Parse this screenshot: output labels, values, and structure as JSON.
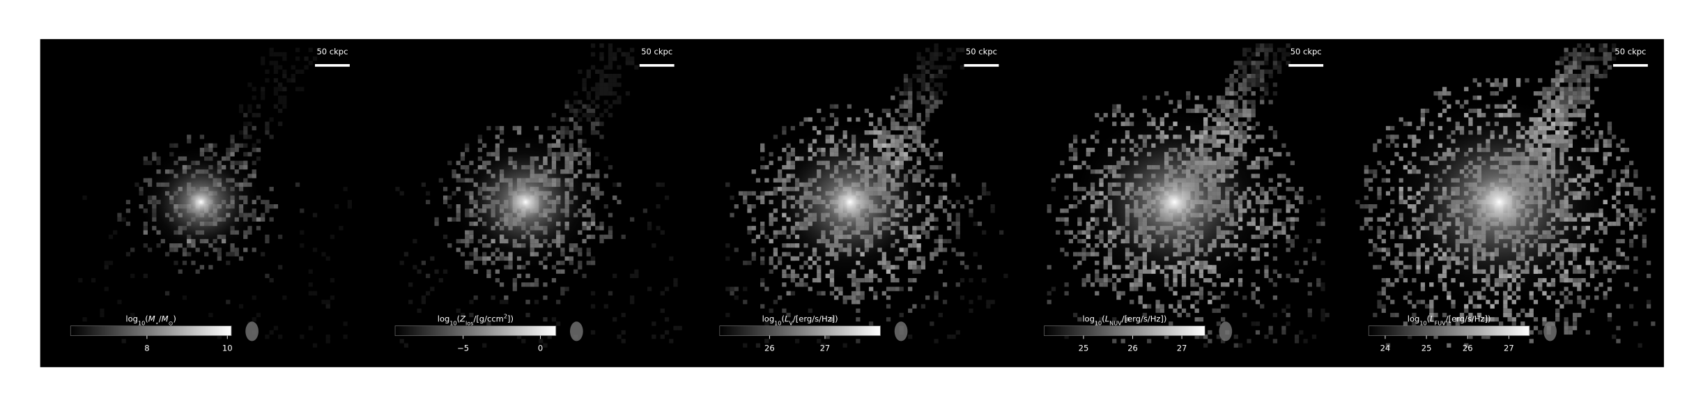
{
  "panels": [
    {
      "scale_bar": "50 ckpc",
      "colorbar": {
        "label": [
          {
            "text": "log"
          },
          {
            "text": "10",
            "sub": true
          },
          {
            "text": "("
          },
          {
            "text": "M",
            "italic": true
          },
          {
            "text": "⋆",
            "sub": true
          },
          {
            "text": "/"
          },
          {
            "text": "M",
            "italic": true
          },
          {
            "text": "⊙",
            "sub": true
          },
          {
            "text": ")"
          }
        ],
        "lim": [
          6.1,
          10.1
        ],
        "ticks": [
          8,
          10
        ]
      }
    },
    {
      "scale_bar": "50 ckpc",
      "colorbar": {
        "label": [
          {
            "text": "log"
          },
          {
            "text": "10",
            "sub": true
          },
          {
            "text": "("
          },
          {
            "text": "Z",
            "italic": true
          },
          {
            "text": "los",
            "sub": true
          },
          {
            "text": "/[g/ccm"
          },
          {
            "text": "2",
            "sup": true
          },
          {
            "text": "])"
          }
        ],
        "lim": [
          -9.4,
          1.0
        ],
        "ticks": [
          {
            "value": -5,
            "label": "−5"
          },
          0
        ]
      }
    },
    {
      "scale_bar": "50 ckpc",
      "colorbar": {
        "label": [
          {
            "text": "log"
          },
          {
            "text": "10",
            "sub": true
          },
          {
            "text": "("
          },
          {
            "text": "L",
            "italic": true
          },
          {
            "text": "V",
            "sub": true
          },
          {
            "text": "/[erg/s/Hz])"
          }
        ],
        "lim": [
          25.1,
          28.0
        ],
        "ticks": [
          26,
          27
        ]
      }
    },
    {
      "scale_bar": "50 ckpc",
      "colorbar": {
        "label": [
          {
            "text": "log"
          },
          {
            "text": "10",
            "sub": true
          },
          {
            "text": "("
          },
          {
            "text": "L",
            "italic": true
          },
          {
            "text": "NUV",
            "sub": true
          },
          {
            "text": "/[erg/s/Hz])"
          }
        ],
        "lim": [
          24.2,
          27.47
        ],
        "ticks": [
          25,
          26,
          27
        ]
      }
    },
    {
      "scale_bar": "50 ckpc",
      "colorbar": {
        "label": [
          {
            "text": "log"
          },
          {
            "text": "10",
            "sub": true
          },
          {
            "text": "("
          },
          {
            "text": "L",
            "italic": true
          },
          {
            "text": "FUV",
            "sub": true
          },
          {
            "text": "/[erg/s/Hz])"
          }
        ],
        "lim": [
          23.6,
          27.5
        ],
        "ticks": [
          24,
          25,
          26,
          27
        ]
      }
    }
  ]
}
